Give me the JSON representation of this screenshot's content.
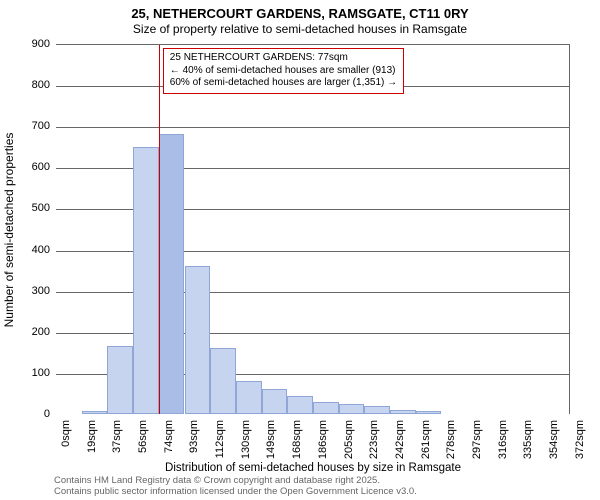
{
  "title_line1": "25, NETHERCOURT GARDENS, RAMSGATE, CT11 0RY",
  "title_line2": "Size of property relative to semi-detached houses in Ramsgate",
  "ylabel": "Number of semi-detached properties",
  "xlabel": "Distribution of semi-detached houses by size in Ramsgate",
  "footer_line1": "Contains HM Land Registry data © Crown copyright and database right 2025.",
  "footer_line2": "Contains public sector information licensed under the Open Government Licence v3.0.",
  "chart": {
    "type": "histogram",
    "background_color": "#ffffff",
    "grid_color": "#666666",
    "bar_fill": "#c6d4ef",
    "bar_stroke": "#8fa6d6",
    "highlight_bar_fill": "#a9bde6",
    "highlight_line_color": "#cc0000",
    "annot_border_color": "#cc0000",
    "annot_bg": "#ffffff",
    "ylim": [
      0,
      900
    ],
    "ytick_step": 100,
    "yticks": [
      0,
      100,
      200,
      300,
      400,
      500,
      600,
      700,
      800,
      900
    ],
    "xtick_labels": [
      "0sqm",
      "19sqm",
      "37sqm",
      "56sqm",
      "74sqm",
      "93sqm",
      "112sqm",
      "130sqm",
      "149sqm",
      "168sqm",
      "186sqm",
      "205sqm",
      "223sqm",
      "242sqm",
      "261sqm",
      "278sqm",
      "297sqm",
      "316sqm",
      "335sqm",
      "354sqm",
      "372sqm"
    ],
    "bin_count": 20,
    "values": [
      0,
      8,
      165,
      650,
      680,
      360,
      160,
      80,
      60,
      45,
      30,
      25,
      20,
      10,
      8,
      0,
      0,
      0,
      0,
      0
    ],
    "highlight_bin_index": 4,
    "highlight_value_sqm": 77,
    "label_fontsize": 12,
    "tick_fontsize": 11,
    "title_fontsize": 13
  },
  "annotation": {
    "line1": "25 NETHERCOURT GARDENS: 77sqm",
    "line2": "← 40% of semi-detached houses are smaller (913)",
    "line3": "60% of semi-detached houses are larger (1,351) →"
  }
}
